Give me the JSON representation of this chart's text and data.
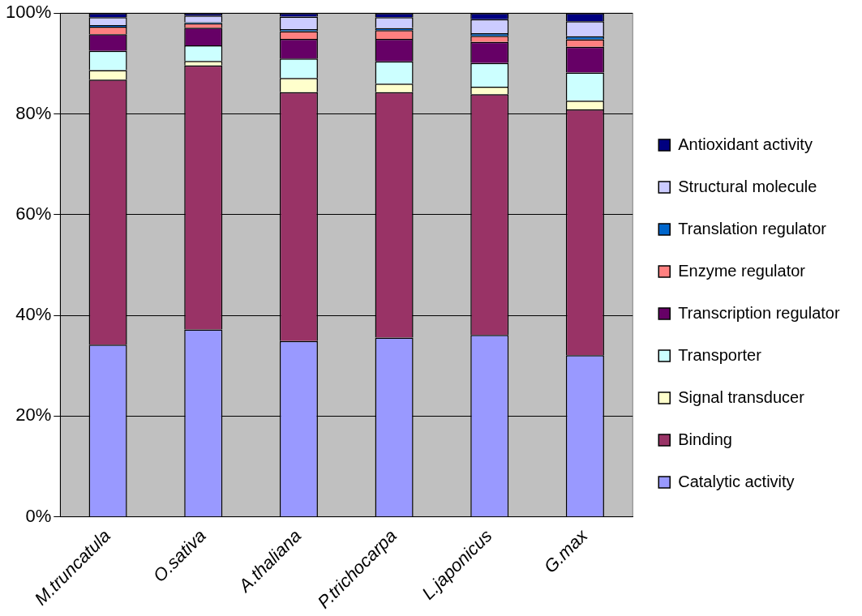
{
  "chart_data": {
    "type": "bar",
    "stacked": true,
    "categories": [
      "M.truncatula",
      "O.sativa",
      "A.thaliana",
      "P.trichocarpa",
      "L.japonicus",
      "G.max"
    ],
    "series": [
      {
        "name": "Catalytic activity",
        "color": "#9999ff",
        "values": [
          34.2,
          37.2,
          34.9,
          35.6,
          36.1,
          32.1
        ]
      },
      {
        "name": "Binding",
        "color": "#993366",
        "values": [
          52.6,
          52.4,
          49.4,
          48.7,
          47.8,
          48.8
        ]
      },
      {
        "name": "Signal transducer",
        "color": "#ffffcc",
        "values": [
          1.9,
          0.9,
          2.8,
          1.7,
          1.5,
          1.7
        ]
      },
      {
        "name": "Transporter",
        "color": "#ccffff",
        "values": [
          3.8,
          3.1,
          3.9,
          4.4,
          4.7,
          5.6
        ]
      },
      {
        "name": "Transcription regulator",
        "color": "#660066",
        "values": [
          3.3,
          3.5,
          3.9,
          4.5,
          4.2,
          5.1
        ]
      },
      {
        "name": "Enzyme regulator",
        "color": "#ff8080",
        "values": [
          1.5,
          0.9,
          1.5,
          1.7,
          1.2,
          1.5
        ]
      },
      {
        "name": "Translation regulator",
        "color": "#0066cc",
        "values": [
          0.3,
          0.2,
          0.4,
          0.4,
          0.5,
          0.6
        ]
      },
      {
        "name": "Structural molecule",
        "color": "#ccccff",
        "values": [
          1.6,
          1.3,
          2.5,
          2.2,
          2.8,
          3.0
        ]
      },
      {
        "name": "Antioxidant activity",
        "color": "#000080",
        "values": [
          0.8,
          0.5,
          0.7,
          0.8,
          1.2,
          1.6
        ]
      }
    ],
    "ylim": [
      0,
      100
    ],
    "yticks": [
      {
        "value": 0,
        "label": "0%"
      },
      {
        "value": 20,
        "label": "20%"
      },
      {
        "value": 40,
        "label": "40%"
      },
      {
        "value": 60,
        "label": "60%"
      },
      {
        "value": 80,
        "label": "80%"
      },
      {
        "value": 100,
        "label": "100%"
      }
    ],
    "grid": "y",
    "legend": "right"
  }
}
